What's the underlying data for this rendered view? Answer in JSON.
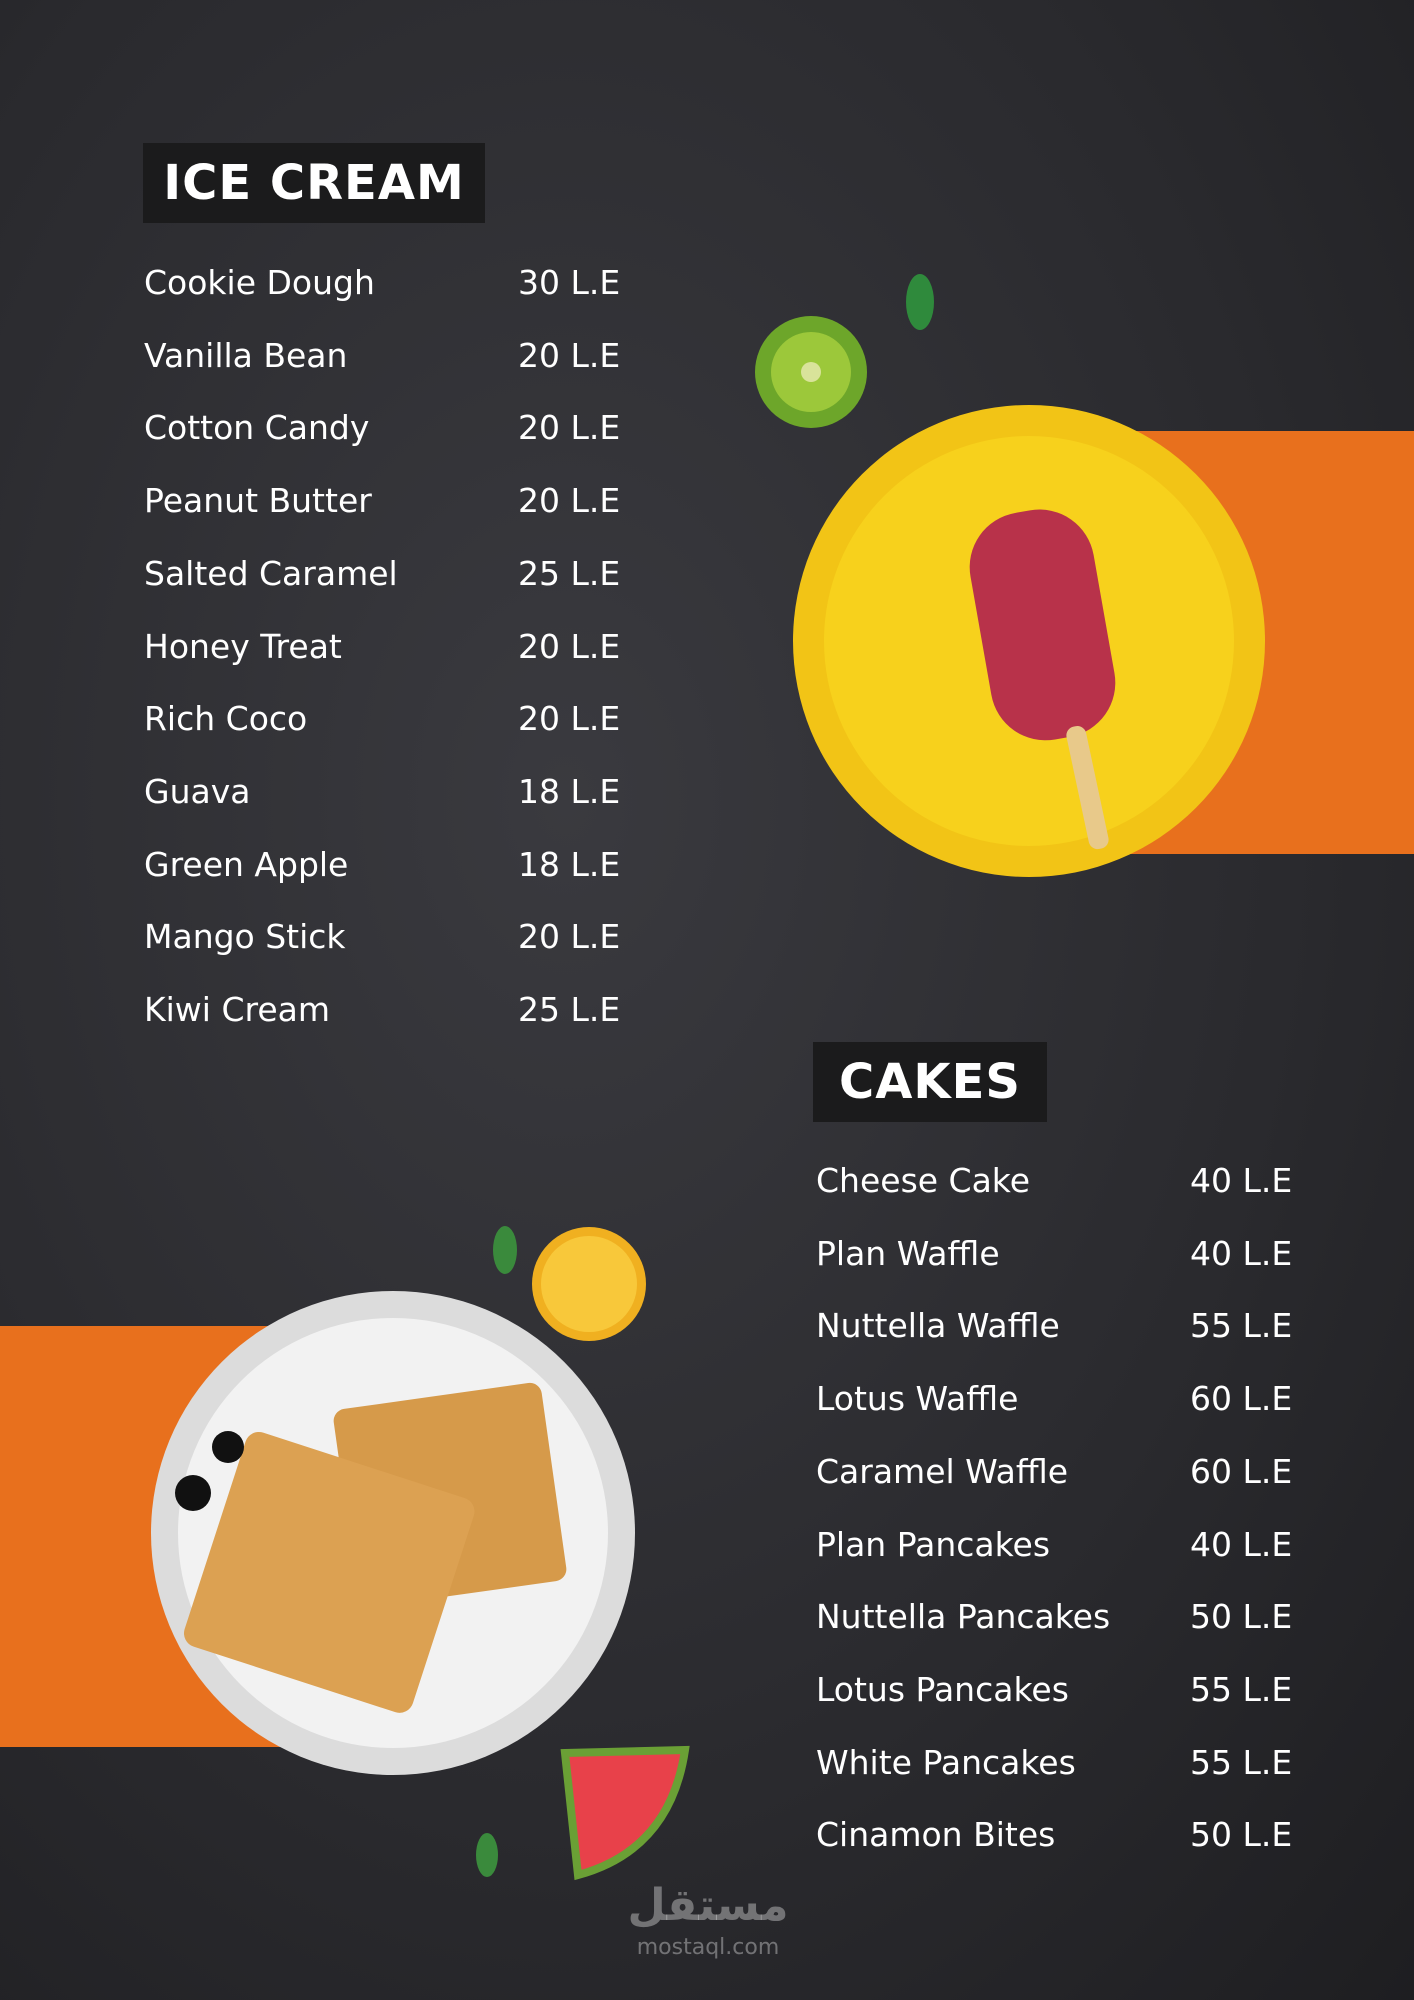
{
  "sections": [
    {
      "title": "ICE CREAM",
      "items": [
        {
          "name": "Cookie Dough",
          "price": "30 L.E"
        },
        {
          "name": "Vanilla Bean",
          "price": "20 L.E"
        },
        {
          "name": "Cotton Candy",
          "price": "20 L.E"
        },
        {
          "name": "Peanut Butter",
          "price": "20 L.E"
        },
        {
          "name": "Salted Caramel",
          "price": "25 L.E"
        },
        {
          "name": "Honey Treat",
          "price": "20 L.E"
        },
        {
          "name": "Rich Coco",
          "price": "20 L.E"
        },
        {
          "name": "Guava",
          "price": "18 L.E"
        },
        {
          "name": "Green Apple",
          "price": "18 L.E"
        },
        {
          "name": "Mango Stick",
          "price": "20 L.E"
        },
        {
          "name": "Kiwi Cream",
          "price": "25 L.E"
        }
      ]
    },
    {
      "title": "CAKES",
      "items": [
        {
          "name": "Cheese Cake",
          "price": "40 L.E"
        },
        {
          "name": "Plan Waffle",
          "price": "40 L.E"
        },
        {
          "name": "Nuttella Waffle",
          "price": "55 L.E"
        },
        {
          "name": "Lotus Waffle",
          "price": "60 L.E"
        },
        {
          "name": "Caramel Waffle",
          "price": "60 L.E"
        },
        {
          "name": "Plan Pancakes",
          "price": "40 L.E"
        },
        {
          "name": "Nuttella Pancakes",
          "price": "50 L.E"
        },
        {
          "name": "Lotus Pancakes",
          "price": "55 L.E"
        },
        {
          "name": "White Pancakes",
          "price": "55 L.E"
        },
        {
          "name": "Cinamon Bites",
          "price": "50 L.E"
        }
      ]
    }
  ],
  "watermark": {
    "logo": "مستقل",
    "site": "mostaql.com"
  }
}
